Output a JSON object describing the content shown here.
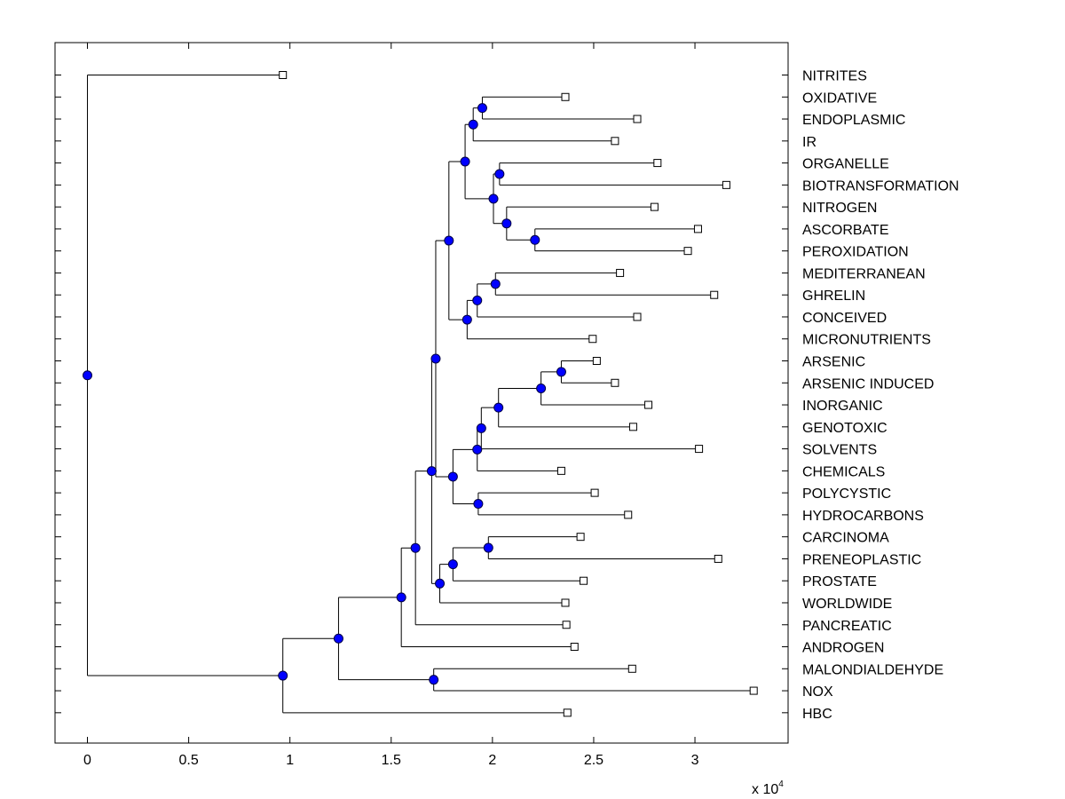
{
  "chart_data": {
    "type": "dendrogram",
    "orientation": "horizontal",
    "title": "",
    "xlabel": "",
    "ylabel": "",
    "x_axis": {
      "range": [
        -1600,
        34600
      ],
      "ticks": [
        0,
        5000,
        10000,
        15000,
        20000,
        25000,
        30000
      ],
      "tick_labels": [
        "0",
        "0.5",
        "1",
        "1.5",
        "2",
        "2.5",
        "3"
      ],
      "multiplier_base": "x 10",
      "multiplier_exp": "4"
    },
    "leaves": [
      {
        "label": "NITRITES",
        "x": 9650
      },
      {
        "label": "OXIDATIVE",
        "x": 23600
      },
      {
        "label": "ENDOPLASMIC",
        "x": 27150
      },
      {
        "label": "IR",
        "x": 26050
      },
      {
        "label": "ORGANELLE",
        "x": 28150
      },
      {
        "label": "BIOTRANSFORMATION",
        "x": 31550
      },
      {
        "label": "NITROGEN",
        "x": 28000
      },
      {
        "label": "ASCORBATE",
        "x": 30150
      },
      {
        "label": "PEROXIDATION",
        "x": 29650
      },
      {
        "label": "MEDITERRANEAN",
        "x": 26300
      },
      {
        "label": "GHRELIN",
        "x": 30950
      },
      {
        "label": "CONCEIVED",
        "x": 27150
      },
      {
        "label": "MICRONUTRIENTS",
        "x": 24950
      },
      {
        "label": "ARSENIC",
        "x": 25150
      },
      {
        "label": "ARSENIC INDUCED",
        "x": 26050
      },
      {
        "label": "INORGANIC",
        "x": 27700
      },
      {
        "label": "GENOTOXIC",
        "x": 26950
      },
      {
        "label": "SOLVENTS",
        "x": 30200
      },
      {
        "label": "CHEMICALS",
        "x": 23400
      },
      {
        "label": "POLYCYSTIC",
        "x": 25050
      },
      {
        "label": "HYDROCARBONS",
        "x": 26700
      },
      {
        "label": "CARCINOMA",
        "x": 24350
      },
      {
        "label": "PRENEOPLASTIC",
        "x": 31150
      },
      {
        "label": "PROSTATE",
        "x": 24500
      },
      {
        "label": "WORLDWIDE",
        "x": 23600
      },
      {
        "label": "PANCREATIC",
        "x": 23650
      },
      {
        "label": "ANDROGEN",
        "x": 24050
      },
      {
        "label": "MALONDIALDEHYDE",
        "x": 26900
      },
      {
        "label": "NOX",
        "x": 32900
      },
      {
        "label": "HBC",
        "x": 23700
      }
    ],
    "merges": [
      {
        "id": "A",
        "x": 19500,
        "children": [
          "L1",
          "L2"
        ]
      },
      {
        "id": "B",
        "x": 19050,
        "children": [
          "A",
          "L3"
        ]
      },
      {
        "id": "C",
        "x": 20350,
        "children": [
          "L4",
          "L5"
        ]
      },
      {
        "id": "D",
        "x": 22100,
        "children": [
          "L7",
          "L8"
        ]
      },
      {
        "id": "E",
        "x": 20700,
        "children": [
          "D",
          "L6"
        ]
      },
      {
        "id": "F",
        "x": 20050,
        "children": [
          "C",
          "E"
        ]
      },
      {
        "id": "G",
        "x": 18650,
        "children": [
          "B",
          "F"
        ]
      },
      {
        "id": "H",
        "x": 20150,
        "children": [
          "L9",
          "L10"
        ]
      },
      {
        "id": "I",
        "x": 19250,
        "children": [
          "H",
          "L11"
        ]
      },
      {
        "id": "J",
        "x": 18750,
        "children": [
          "I",
          "L12"
        ]
      },
      {
        "id": "K",
        "x": 17850,
        "children": [
          "G",
          "J"
        ]
      },
      {
        "id": "M",
        "x": 23400,
        "children": [
          "L13",
          "L14"
        ]
      },
      {
        "id": "N",
        "x": 22400,
        "children": [
          "M",
          "L15"
        ]
      },
      {
        "id": "O",
        "x": 20300,
        "children": [
          "N",
          "L16"
        ]
      },
      {
        "id": "P",
        "x": 19450,
        "children": [
          "O",
          "L17"
        ]
      },
      {
        "id": "Q",
        "x": 19250,
        "children": [
          "P",
          "L18"
        ]
      },
      {
        "id": "R",
        "x": 19300,
        "children": [
          "L19",
          "L20"
        ]
      },
      {
        "id": "S",
        "x": 18050,
        "children": [
          "Q",
          "R"
        ]
      },
      {
        "id": "T",
        "x": 17200,
        "children": [
          "K",
          "S"
        ]
      },
      {
        "id": "U",
        "x": 19800,
        "children": [
          "L21",
          "L22"
        ]
      },
      {
        "id": "V",
        "x": 18050,
        "children": [
          "U",
          "L23"
        ]
      },
      {
        "id": "W",
        "x": 17400,
        "children": [
          "V",
          "L24"
        ]
      },
      {
        "id": "X",
        "x": 17000,
        "children": [
          "T",
          "W"
        ]
      },
      {
        "id": "Y",
        "x": 16200,
        "children": [
          "X",
          "L25"
        ]
      },
      {
        "id": "Z",
        "x": 15500,
        "children": [
          "Y",
          "L26"
        ]
      },
      {
        "id": "AA",
        "x": 17100,
        "children": [
          "L27",
          "L28"
        ]
      },
      {
        "id": "AB",
        "x": 12400,
        "children": [
          "Z",
          "AA"
        ]
      },
      {
        "id": "AC",
        "x": 9650,
        "children": [
          "AB",
          "L29"
        ]
      },
      {
        "id": "ROOT",
        "x": 0,
        "children": [
          "L0",
          "AC"
        ]
      }
    ]
  },
  "colors": {
    "node_fill": "#0000ff",
    "node_stroke": "#000044",
    "line": "#000000",
    "leaf_fill": "#ffffff"
  }
}
